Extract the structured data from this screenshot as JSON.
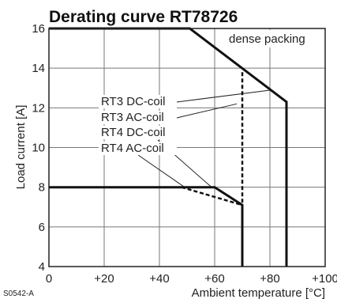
{
  "figure_code": "S0542-A",
  "chart_data": {
    "type": "line",
    "title": "Derating curve RT78726",
    "xlabel": "Ambient temperature [°C]",
    "ylabel": "Load current [A]",
    "annotation": "dense packing",
    "xlim": [
      0,
      100
    ],
    "ylim": [
      4,
      16
    ],
    "x_ticks": [
      0,
      20,
      40,
      60,
      80,
      100
    ],
    "x_tick_labels": [
      "0",
      "+20",
      "+40",
      "+60",
      "+80",
      "+100"
    ],
    "y_ticks": [
      4,
      6,
      8,
      10,
      12,
      14,
      16
    ],
    "y_tick_labels": [
      "4",
      "6",
      "8",
      "10",
      "12",
      "14",
      "16"
    ],
    "grid": true,
    "series": [
      {
        "name": "RT3 DC-coil",
        "dash": "solid",
        "points": [
          [
            0,
            16
          ],
          [
            51,
            16
          ],
          [
            86,
            12.3
          ],
          [
            86,
            4
          ]
        ]
      },
      {
        "name": "RT3 AC-coil",
        "dash": "dashed",
        "points": [
          [
            70,
            13.8
          ],
          [
            70,
            4
          ]
        ]
      },
      {
        "name": "RT4 DC-coil",
        "dash": "solid",
        "points": [
          [
            0,
            8
          ],
          [
            60,
            8
          ],
          [
            70,
            7.1
          ],
          [
            70,
            4
          ]
        ]
      },
      {
        "name": "RT4 AC-coil",
        "dash": "dashed",
        "points": [
          [
            48,
            8
          ],
          [
            70,
            7.1
          ]
        ]
      }
    ]
  }
}
